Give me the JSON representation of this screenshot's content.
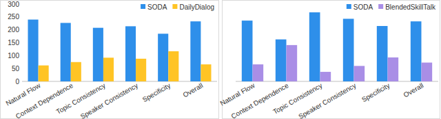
{
  "chart_data": [
    {
      "type": "bar",
      "categories": [
        "Natural Flow",
        "Context Dependence",
        "Topic Consistency",
        "Speaker Consistency",
        "Specificity",
        "Overall"
      ],
      "series": [
        {
          "name": "SODA",
          "color": "#2e8fea",
          "values": [
            240,
            227,
            208,
            214,
            185,
            233
          ]
        },
        {
          "name": "DailyDialog",
          "color": "#ffc425",
          "values": [
            62,
            75,
            92,
            88,
            117,
            66
          ]
        }
      ],
      "ylim": [
        0,
        300
      ],
      "yticks": [
        0,
        50,
        100,
        150,
        200,
        250,
        300
      ],
      "grid": false,
      "legend": "top-right"
    },
    {
      "type": "bar",
      "categories": [
        "Natural Flow",
        "Context Dependence",
        "Topic Consistency",
        "Speaker Consistency",
        "Specificity",
        "Overall"
      ],
      "series": [
        {
          "name": "SODA",
          "color": "#2e8fea",
          "values": [
            236,
            163,
            268,
            243,
            215,
            233
          ]
        },
        {
          "name": "BlendedSkillTalk",
          "color": "#a98ee6",
          "values": [
            66,
            141,
            37,
            60,
            93,
            73
          ]
        }
      ],
      "ylim": [
        0,
        300
      ],
      "yticks": [
        0,
        50,
        100,
        150,
        200,
        250,
        300
      ],
      "grid": false,
      "legend": "top-right",
      "tick_labels": "x"
    }
  ]
}
